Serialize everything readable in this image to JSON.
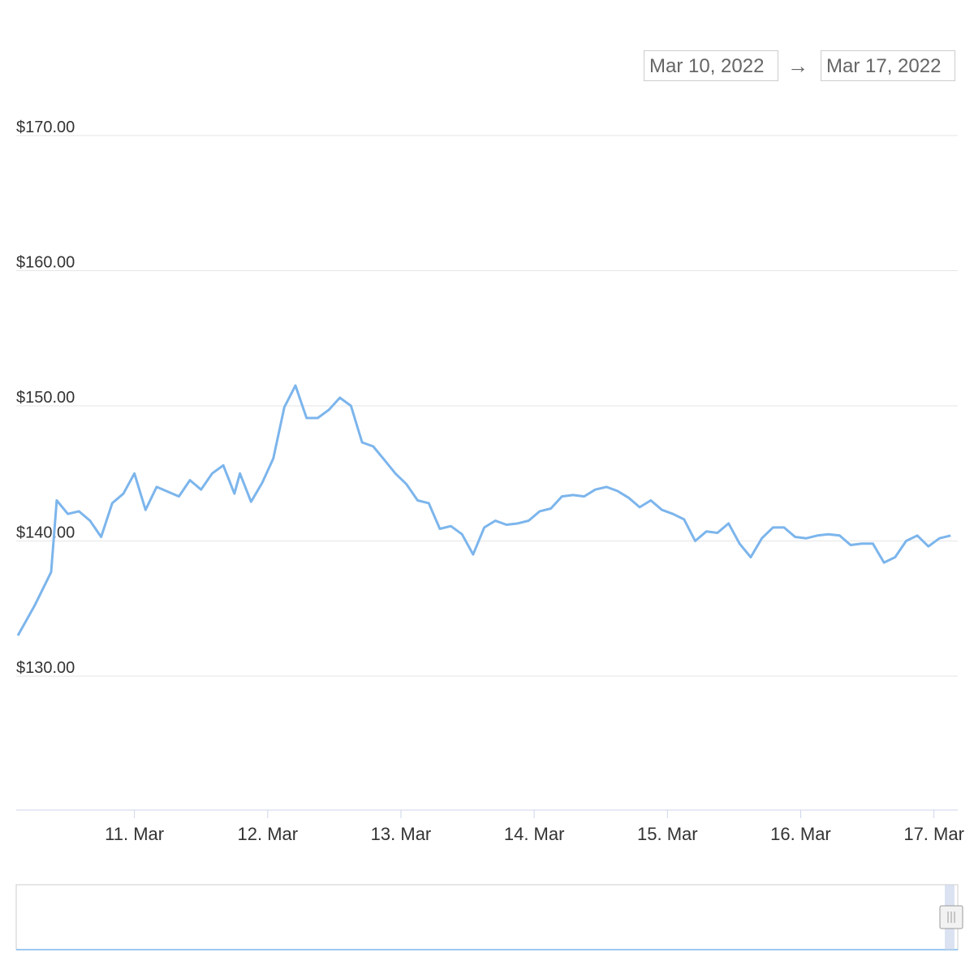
{
  "range_selector": {
    "from_value": "Mar 10, 2022",
    "arrow": "→",
    "to_value": "Mar 17, 2022"
  },
  "colors": {
    "line": "#7cb5ec",
    "volume": "#d6d6d6",
    "grid": "#e6e6e6",
    "navigator_fill": "#e8f2fb",
    "navigator_handle": "#ccd6eb"
  },
  "chart_data": {
    "type": "line",
    "title": "",
    "xlabel": "",
    "ylabel": "",
    "ylim": [
      130,
      170
    ],
    "y_ticks": [
      "$130.00",
      "$140.00",
      "$150.00",
      "$160.00",
      "$170.00"
    ],
    "x_ticks": [
      "11. Mar",
      "12. Mar",
      "13. Mar",
      "14. Mar",
      "15. Mar",
      "16. Mar",
      "17. Mar"
    ],
    "x_range": [
      "2022-03-10 03:00",
      "2022-03-17 04:00"
    ],
    "legend": "none",
    "grid": true,
    "price": [
      [
        "2022-03-10 03:00",
        133.0
      ],
      [
        "2022-03-10 06:00",
        135.2
      ],
      [
        "2022-03-10 09:00",
        137.7
      ],
      [
        "2022-03-10 10:00",
        143.0
      ],
      [
        "2022-03-10 12:00",
        142.0
      ],
      [
        "2022-03-10 14:00",
        142.2
      ],
      [
        "2022-03-10 16:00",
        141.5
      ],
      [
        "2022-03-10 18:00",
        140.3
      ],
      [
        "2022-03-10 20:00",
        142.8
      ],
      [
        "2022-03-10 22:00",
        143.5
      ],
      [
        "2022-03-11 00:00",
        145.0
      ],
      [
        "2022-03-11 02:00",
        142.3
      ],
      [
        "2022-03-11 04:00",
        144.0
      ],
      [
        "2022-03-11 08:00",
        143.3
      ],
      [
        "2022-03-11 10:00",
        144.5
      ],
      [
        "2022-03-11 12:00",
        143.8
      ],
      [
        "2022-03-11 14:00",
        145.0
      ],
      [
        "2022-03-11 16:00",
        145.6
      ],
      [
        "2022-03-11 18:00",
        143.5
      ],
      [
        "2022-03-11 19:00",
        145.0
      ],
      [
        "2022-03-11 21:00",
        142.9
      ],
      [
        "2022-03-11 23:00",
        144.3
      ],
      [
        "2022-03-12 01:00",
        146.1
      ],
      [
        "2022-03-12 03:00",
        149.9
      ],
      [
        "2022-03-12 05:00",
        151.5
      ],
      [
        "2022-03-12 07:00",
        149.1
      ],
      [
        "2022-03-12 09:00",
        149.1
      ],
      [
        "2022-03-12 11:00",
        149.7
      ],
      [
        "2022-03-12 13:00",
        150.6
      ],
      [
        "2022-03-12 15:00",
        150.0
      ],
      [
        "2022-03-12 17:00",
        147.3
      ],
      [
        "2022-03-12 19:00",
        147.0
      ],
      [
        "2022-03-12 21:00",
        146.0
      ],
      [
        "2022-03-12 23:00",
        145.0
      ],
      [
        "2022-03-13 01:00",
        144.2
      ],
      [
        "2022-03-13 03:00",
        143.0
      ],
      [
        "2022-03-13 05:00",
        142.8
      ],
      [
        "2022-03-13 07:00",
        140.9
      ],
      [
        "2022-03-13 09:00",
        141.1
      ],
      [
        "2022-03-13 11:00",
        140.5
      ],
      [
        "2022-03-13 13:00",
        139.0
      ],
      [
        "2022-03-13 15:00",
        141.0
      ],
      [
        "2022-03-13 17:00",
        141.5
      ],
      [
        "2022-03-13 19:00",
        141.2
      ],
      [
        "2022-03-13 21:00",
        141.3
      ],
      [
        "2022-03-13 23:00",
        141.5
      ],
      [
        "2022-03-14 01:00",
        142.2
      ],
      [
        "2022-03-14 03:00",
        142.4
      ],
      [
        "2022-03-14 05:00",
        143.3
      ],
      [
        "2022-03-14 07:00",
        143.4
      ],
      [
        "2022-03-14 09:00",
        143.3
      ],
      [
        "2022-03-14 11:00",
        143.8
      ],
      [
        "2022-03-14 13:00",
        144.0
      ],
      [
        "2022-03-14 15:00",
        143.7
      ],
      [
        "2022-03-14 17:00",
        143.2
      ],
      [
        "2022-03-14 19:00",
        142.5
      ],
      [
        "2022-03-14 21:00",
        143.0
      ],
      [
        "2022-03-14 23:00",
        142.3
      ],
      [
        "2022-03-15 01:00",
        142.0
      ],
      [
        "2022-03-15 03:00",
        141.6
      ],
      [
        "2022-03-15 05:00",
        140.0
      ],
      [
        "2022-03-15 07:00",
        140.7
      ],
      [
        "2022-03-15 09:00",
        140.6
      ],
      [
        "2022-03-15 11:00",
        141.3
      ],
      [
        "2022-03-15 13:00",
        139.8
      ],
      [
        "2022-03-15 15:00",
        138.8
      ],
      [
        "2022-03-15 17:00",
        140.2
      ],
      [
        "2022-03-15 19:00",
        141.0
      ],
      [
        "2022-03-15 21:00",
        141.0
      ],
      [
        "2022-03-15 23:00",
        140.3
      ],
      [
        "2022-03-16 01:00",
        140.2
      ],
      [
        "2022-03-16 03:00",
        140.4
      ],
      [
        "2022-03-16 05:00",
        140.5
      ],
      [
        "2022-03-16 07:00",
        140.4
      ],
      [
        "2022-03-16 09:00",
        139.7
      ],
      [
        "2022-03-16 11:00",
        139.8
      ],
      [
        "2022-03-16 13:00",
        139.8
      ],
      [
        "2022-03-16 15:00",
        138.4
      ],
      [
        "2022-03-16 17:00",
        138.8
      ],
      [
        "2022-03-16 19:00",
        140.0
      ],
      [
        "2022-03-16 21:00",
        140.4
      ],
      [
        "2022-03-16 23:00",
        139.6
      ],
      [
        "2022-03-17 01:00",
        140.2
      ],
      [
        "2022-03-17 03:00",
        140.4
      ]
    ],
    "volume": []
  }
}
